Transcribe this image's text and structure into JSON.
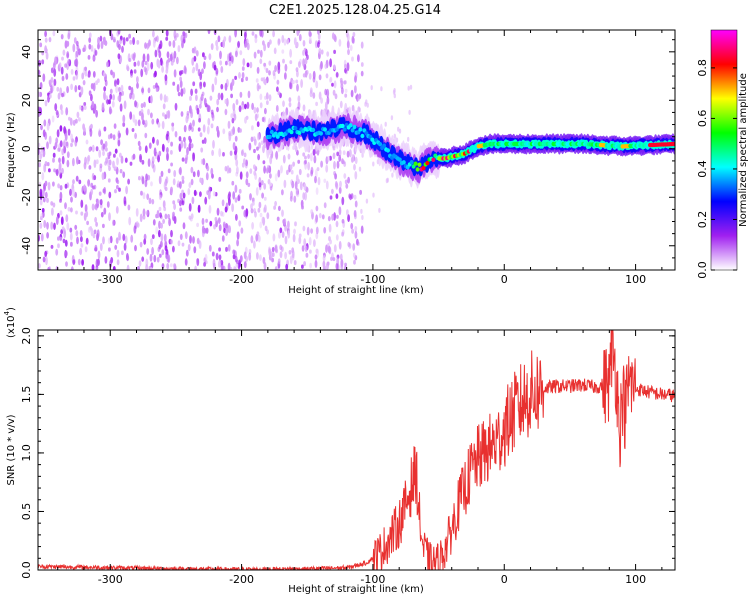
{
  "figure": {
    "title": "C2E1.2025.128.04.25.G14"
  },
  "chart_data": [
    {
      "type": "heatmap",
      "title": "C2E1.2025.128.04.25.G14",
      "xlabel": "Height of straight line (km)",
      "ylabel": "Frequency (Hz)",
      "xlim": [
        -355,
        130
      ],
      "ylim": [
        -50,
        49
      ],
      "x_ticks": [
        -300,
        -200,
        -100,
        0,
        100
      ],
      "x_tick_labels": [
        "-300",
        "-200",
        "-100",
        "0",
        "100"
      ],
      "y_ticks": [
        -40,
        -20,
        0,
        20,
        40
      ],
      "y_tick_labels": [
        "-40",
        "-20",
        "0",
        "20",
        "40"
      ],
      "colorbar": {
        "label": "Normalized spectral amplitude",
        "range": [
          0.0,
          0.95
        ],
        "ticks": [
          0.0,
          0.2,
          0.4,
          0.6,
          0.8
        ],
        "tick_labels": [
          "0.0",
          "0.2",
          "0.4",
          "0.6",
          "0.8"
        ],
        "colormap": [
          "#ffffff",
          "#a020f0",
          "#0000ff",
          "#00ffff",
          "#00ff00",
          "#ffff00",
          "#ff0000",
          "#ff00ff"
        ]
      },
      "noise_region": {
        "x_range": [
          -355,
          -118
        ],
        "amplitude": [
          0.05,
          0.15
        ]
      },
      "tone_track": [
        {
          "x": -180,
          "y": 5
        },
        {
          "x": -160,
          "y": 8
        },
        {
          "x": -140,
          "y": 7
        },
        {
          "x": -120,
          "y": 9
        },
        {
          "x": -105,
          "y": 6
        },
        {
          "x": -95,
          "y": 2
        },
        {
          "x": -85,
          "y": -3
        },
        {
          "x": -75,
          "y": -6
        },
        {
          "x": -65,
          "y": -8
        },
        {
          "x": -55,
          "y": -4
        },
        {
          "x": -45,
          "y": -4
        },
        {
          "x": -30,
          "y": -2
        },
        {
          "x": -20,
          "y": 1
        },
        {
          "x": -10,
          "y": 2
        },
        {
          "x": 0,
          "y": 2
        },
        {
          "x": 30,
          "y": 2
        },
        {
          "x": 60,
          "y": 2
        },
        {
          "x": 90,
          "y": 1
        },
        {
          "x": 130,
          "y": 2
        }
      ],
      "grid": false
    },
    {
      "type": "line",
      "xlabel": "Height of straight line (km)",
      "ylabel": "SNR (10 * v/v)",
      "y_multiplier": "(x10",
      "y_multiplier_exp": "4",
      "y_multiplier_close": ")",
      "xlim": [
        -355,
        130
      ],
      "ylim": [
        0.0,
        2.05
      ],
      "x_ticks": [
        -300,
        -200,
        -100,
        0,
        100
      ],
      "x_tick_labels": [
        "-300",
        "-200",
        "-100",
        "0",
        "100"
      ],
      "y_ticks": [
        0.0,
        0.5,
        1.0,
        1.5,
        2.0
      ],
      "y_tick_labels": [
        "0.0",
        "0.5",
        "1.0",
        "1.5",
        "2.0"
      ],
      "color": "#e8302f",
      "grid": false,
      "series": [
        {
          "x": [
            -355,
            -300,
            -250,
            -200,
            -150,
            -120,
            -105,
            -95,
            -88,
            -80,
            -75,
            -70,
            -67,
            -65,
            -62,
            -58,
            -55,
            -50,
            -45,
            -40,
            -35,
            -30,
            -25,
            -20,
            -15,
            -10,
            -5,
            0,
            5,
            10,
            15,
            20,
            25,
            30,
            35,
            40,
            50,
            60,
            70,
            75,
            80,
            82,
            85,
            88,
            90,
            92,
            95,
            100,
            110,
            120,
            130
          ],
          "y": [
            0.03,
            0.02,
            0.01,
            0.005,
            0.01,
            0.02,
            0.06,
            0.15,
            0.25,
            0.4,
            0.55,
            0.75,
            0.85,
            0.5,
            0.2,
            0.1,
            0.06,
            0.08,
            0.18,
            0.35,
            0.55,
            0.7,
            0.85,
            0.95,
            1.0,
            1.05,
            1.1,
            1.2,
            1.3,
            1.38,
            1.45,
            1.5,
            1.53,
            1.55,
            1.56,
            1.57,
            1.57,
            1.58,
            1.56,
            1.58,
            1.6,
            1.9,
            1.7,
            1.2,
            1.5,
            1.35,
            1.6,
            1.55,
            1.52,
            1.5,
            1.49
          ]
        }
      ]
    }
  ]
}
